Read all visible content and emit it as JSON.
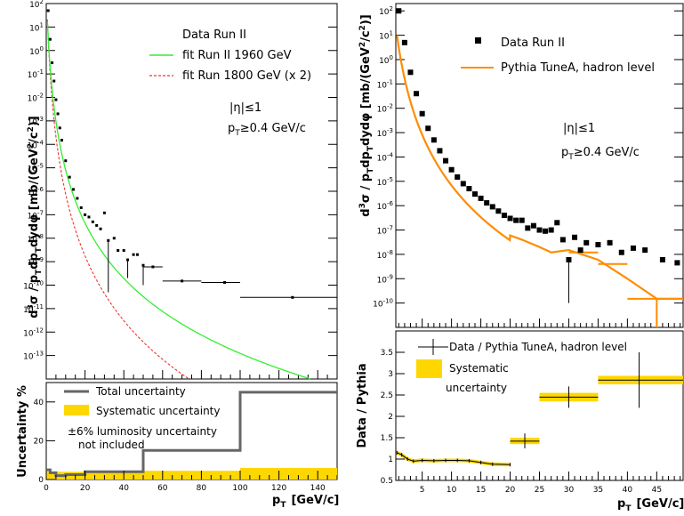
{
  "chart_data": [
    {
      "id": "left_top",
      "type": "scatter",
      "log_y": true,
      "xlim": [
        0,
        150
      ],
      "ylim": [
        1e-14,
        100
      ],
      "y_exponent_ticks": [
        2,
        1,
        0,
        -1,
        -2,
        -3,
        -4,
        -5,
        -6,
        -7,
        -8,
        -9,
        -10,
        -11,
        -12,
        -13
      ],
      "ylabel_text": "d³σ / pTdpTdydφ [mb/(GeV²/c²)]",
      "ylabel_parts": [
        "d",
        "3",
        "σ / p",
        "T",
        "dp",
        "T",
        "dyd",
        "φ [mb/(GeV",
        "2",
        "/c",
        "2",
        ")]"
      ],
      "legend": {
        "data": "Data Run II",
        "fit1": "fit Run II 1960 GeV",
        "fit2": "fit Run 1800 GeV (x 2)"
      },
      "annotations": {
        "eta": "|η|≤1",
        "pt": "pT≥0.4 GeV/c",
        "pt_parts": [
          "p",
          "T",
          "≥0.4 GeV/c"
        ]
      },
      "colors": {
        "fit1": "#33ee33",
        "fit2": "#ee3333",
        "data": "#000000"
      },
      "fit_run2": {
        "A": 400,
        "p0": 1.3,
        "n": 8.2
      },
      "fit_run1800": {
        "A": 800,
        "p0": 1.3,
        "n": 9.6
      },
      "points": [
        {
          "x": 1,
          "y": 50
        },
        {
          "x": 2,
          "y": 3
        },
        {
          "x": 3,
          "y": 0.3
        },
        {
          "x": 4,
          "y": 0.05
        },
        {
          "x": 5,
          "y": 0.008
        },
        {
          "x": 6,
          "y": 0.002
        },
        {
          "x": 7,
          "y": 0.0005
        },
        {
          "x": 8,
          "y": 0.00015
        },
        {
          "x": 10,
          "y": 2e-05
        },
        {
          "x": 12,
          "y": 4e-06
        },
        {
          "x": 14,
          "y": 1.2e-06
        },
        {
          "x": 16,
          "y": 5e-07
        },
        {
          "x": 18,
          "y": 2e-07
        },
        {
          "x": 20,
          "y": 1e-07
        },
        {
          "x": 22,
          "y": 8e-08
        },
        {
          "x": 24,
          "y": 5e-08
        },
        {
          "x": 26,
          "y": 3.5e-08
        },
        {
          "x": 28,
          "y": 2.5e-08
        },
        {
          "x": 30,
          "y": 1.2e-07
        },
        {
          "x": 32,
          "y": 8e-09,
          "ylo": 5e-11
        },
        {
          "x": 35,
          "y": 1e-08
        },
        {
          "x": 37,
          "y": 3e-09
        },
        {
          "x": 40,
          "y": 3e-09
        },
        {
          "x": 42,
          "y": 1.2e-09,
          "ylo": 2e-10
        },
        {
          "x": 45,
          "y": 2e-09
        },
        {
          "x": 47,
          "y": 2e-09
        },
        {
          "x": 50,
          "y": 7e-10,
          "ylo": 1e-10
        },
        {
          "x": 55,
          "y": 6e-10,
          "xlo": 50,
          "xhi": 60
        },
        {
          "x": 70,
          "y": 1.5e-10,
          "xlo": 60,
          "xhi": 80
        },
        {
          "x": 92,
          "y": 1.3e-10,
          "xlo": 80,
          "xhi": 100
        },
        {
          "x": 127,
          "y": 3e-11,
          "xlo": 100,
          "xhi": 150
        }
      ]
    },
    {
      "id": "left_bottom",
      "type": "line",
      "xlim": [
        0,
        150
      ],
      "ylim": [
        0,
        50
      ],
      "x_ticks": [
        0,
        20,
        40,
        60,
        80,
        100,
        120,
        140
      ],
      "y_ticks": [
        0,
        20,
        40
      ],
      "ylabel": "Uncertainty %",
      "xlabel": "pT [GeV/c]",
      "xlabel_parts": [
        "p",
        "T",
        "[GeV/c]"
      ],
      "legend": {
        "total": "Total uncertainty",
        "syst": "Systematic uncertainty",
        "note1": "±6% luminosity uncertainty",
        "note2": "not included"
      },
      "colors": {
        "total": "#666666",
        "syst": "#ffd700"
      },
      "total_steps": [
        {
          "x0": 0,
          "x1": 2,
          "y": 5
        },
        {
          "x0": 2,
          "x1": 5,
          "y": 3.5
        },
        {
          "x0": 5,
          "x1": 10,
          "y": 2
        },
        {
          "x0": 10,
          "x1": 20,
          "y": 2.5
        },
        {
          "x0": 20,
          "x1": 50,
          "y": 4
        },
        {
          "x0": 50,
          "x1": 100,
          "y": 15
        },
        {
          "x0": 100,
          "x1": 150,
          "y": 45
        }
      ],
      "syst_steps": [
        {
          "x0": 0,
          "x1": 20,
          "y": 4
        },
        {
          "x0": 20,
          "x1": 100,
          "y": 4.5
        },
        {
          "x0": 100,
          "x1": 150,
          "y": 6
        }
      ]
    },
    {
      "id": "right_top",
      "type": "scatter",
      "log_y": true,
      "xlim": [
        0.5,
        49.5
      ],
      "ylim": [
        1e-11,
        200
      ],
      "y_exponent_ticks": [
        2,
        1,
        0,
        -1,
        -2,
        -3,
        -4,
        -5,
        -6,
        -7,
        -8,
        -9,
        -10
      ],
      "ylabel_text": "d³σ / pTdpTdydφ [mb/(GeV²/c²)]",
      "legend": {
        "data": "Data Run II",
        "pythia": "Pythia TuneA, hadron level"
      },
      "annotations": {
        "eta": "|η|≤1",
        "pt": "pT≥0.4 GeV/c"
      },
      "colors": {
        "pythia": "#ff8c00",
        "data": "#000000"
      },
      "pythia_fit": {
        "A": 400,
        "p0": 1.3,
        "n": 8.2,
        "scale": 0.85
      },
      "pythia_tail": [
        {
          "x": 20,
          "y": 6e-08
        },
        {
          "x": 22,
          "y": 4e-08
        },
        {
          "x": 25,
          "y": 2e-08
        },
        {
          "x": 27,
          "y": 1.2e-08
        },
        {
          "x": 30,
          "y": 1.5e-08
        },
        {
          "x": 35,
          "y": 6e-09
        },
        {
          "x": 40,
          "y": 1e-09
        },
        {
          "x": 45,
          "y": 1.5e-10
        },
        {
          "x": 49.5,
          "y": 1.5e-10
        }
      ],
      "tail_errors": [
        {
          "x": 32.5,
          "y": 1.2e-08,
          "xlo": 30,
          "xhi": 35
        },
        {
          "x": 37.5,
          "y": 4e-09,
          "xlo": 35,
          "xhi": 40
        },
        {
          "x": 45,
          "y": 1.5e-10,
          "xlo": 40,
          "xhi": 49.5,
          "ylo": 1e-11
        }
      ],
      "points": [
        {
          "x": 1,
          "y": 100
        },
        {
          "x": 2,
          "y": 5
        },
        {
          "x": 3,
          "y": 0.3
        },
        {
          "x": 4,
          "y": 0.04
        },
        {
          "x": 5,
          "y": 0.006
        },
        {
          "x": 6,
          "y": 0.0015
        },
        {
          "x": 7,
          "y": 0.0005
        },
        {
          "x": 8,
          "y": 0.00018
        },
        {
          "x": 9,
          "y": 7e-05
        },
        {
          "x": 10,
          "y": 3e-05
        },
        {
          "x": 11,
          "y": 1.5e-05
        },
        {
          "x": 12,
          "y": 8e-06
        },
        {
          "x": 13,
          "y": 5e-06
        },
        {
          "x": 14,
          "y": 3e-06
        },
        {
          "x": 15,
          "y": 2e-06
        },
        {
          "x": 16,
          "y": 1.3e-06
        },
        {
          "x": 17,
          "y": 9e-07
        },
        {
          "x": 18,
          "y": 6e-07
        },
        {
          "x": 19,
          "y": 4e-07
        },
        {
          "x": 20,
          "y": 3e-07
        },
        {
          "x": 21,
          "y": 2.5e-07
        },
        {
          "x": 22,
          "y": 2.5e-07
        },
        {
          "x": 23,
          "y": 1.2e-07
        },
        {
          "x": 24,
          "y": 1.5e-07
        },
        {
          "x": 25,
          "y": 1e-07
        },
        {
          "x": 26,
          "y": 9e-08
        },
        {
          "x": 27,
          "y": 1e-07
        },
        {
          "x": 28,
          "y": 2e-07
        },
        {
          "x": 29,
          "y": 4e-08
        },
        {
          "x": 30,
          "y": 6e-09,
          "ylo": 1e-10
        },
        {
          "x": 31,
          "y": 5e-08
        },
        {
          "x": 32,
          "y": 1.5e-08
        },
        {
          "x": 33,
          "y": 3e-08
        },
        {
          "x": 35,
          "y": 2.5e-08
        },
        {
          "x": 37,
          "y": 3e-08
        },
        {
          "x": 39,
          "y": 1.2e-08
        },
        {
          "x": 41,
          "y": 1.8e-08
        },
        {
          "x": 43,
          "y": 1.5e-08
        },
        {
          "x": 46,
          "y": 6e-09
        },
        {
          "x": 48.5,
          "y": 4.5e-09
        }
      ]
    },
    {
      "id": "right_bottom",
      "type": "scatter",
      "xlim": [
        0.5,
        49.5
      ],
      "ylim": [
        0.5,
        4
      ],
      "x_ticks": [
        5,
        10,
        15,
        20,
        25,
        30,
        35,
        40,
        45
      ],
      "y_ticks": [
        0.5,
        1,
        1.5,
        2,
        2.5,
        3,
        3.5
      ],
      "ylabel": "Data / Pythia",
      "xlabel": "pT [GeV/c]",
      "legend": {
        "data": "Data / Pythia TuneA, hadron level",
        "syst1": "Systematic",
        "syst2": "uncertainty"
      },
      "colors": {
        "syst": "#ffd700",
        "data": "#000000"
      },
      "line_points": [
        {
          "x": 0.7,
          "y": 1.15
        },
        {
          "x": 1.5,
          "y": 1.1
        },
        {
          "x": 2.5,
          "y": 1.0
        },
        {
          "x": 3.5,
          "y": 0.95
        },
        {
          "x": 5,
          "y": 0.97
        },
        {
          "x": 7,
          "y": 0.96
        },
        {
          "x": 9,
          "y": 0.97
        },
        {
          "x": 11,
          "y": 0.97
        },
        {
          "x": 13,
          "y": 0.96
        },
        {
          "x": 15,
          "y": 0.92
        },
        {
          "x": 17,
          "y": 0.88
        },
        {
          "x": 20,
          "y": 0.87
        }
      ],
      "points": [
        {
          "x": 22.5,
          "y": 1.42,
          "xlo": 20,
          "xhi": 25,
          "ylo": 1.25,
          "yhi": 1.6
        },
        {
          "x": 30,
          "y": 2.45,
          "xlo": 25,
          "xhi": 35,
          "ylo": 2.2,
          "yhi": 2.7
        },
        {
          "x": 42,
          "y": 2.85,
          "xlo": 35,
          "xhi": 49.5,
          "ylo": 2.2,
          "yhi": 3.5
        }
      ],
      "syst_boxes": [
        {
          "x0": 20,
          "x1": 25,
          "y0": 1.35,
          "y1": 1.5
        },
        {
          "x0": 25,
          "x1": 35,
          "y0": 2.35,
          "y1": 2.55
        },
        {
          "x0": 35,
          "x1": 49.5,
          "y0": 2.75,
          "y1": 2.95
        }
      ]
    }
  ]
}
